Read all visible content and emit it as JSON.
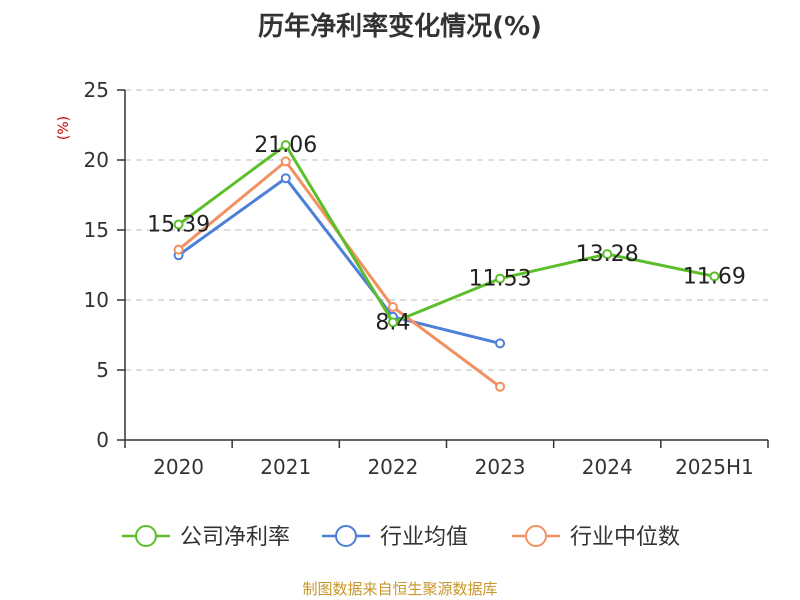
{
  "title": "历年净利率变化情况(%)",
  "source": "制图数据来自恒生聚源数据库",
  "chart_data": {
    "type": "line",
    "title": "历年净利率变化情况(%)",
    "ylabel": "(%)",
    "xlabel": "",
    "categories": [
      "2020",
      "2021",
      "2022",
      "2023",
      "2024",
      "2025H1"
    ],
    "ylim": [
      0,
      25
    ],
    "yticks": [
      0,
      5,
      10,
      15,
      20,
      25
    ],
    "grid": true,
    "legend_position": "bottom",
    "series": [
      {
        "name": "公司净利率",
        "color": "#5cbf2a",
        "values": [
          15.39,
          21.06,
          8.4,
          11.53,
          13.28,
          11.69
        ],
        "labels": [
          "15.39",
          "21.06",
          "8.4",
          "11.53",
          "13.28",
          "11.69"
        ]
      },
      {
        "name": "行业均值",
        "color": "#4d7fd8",
        "values": [
          13.2,
          18.7,
          8.8,
          6.9,
          null,
          null
        ]
      },
      {
        "name": "行业中位数",
        "color": "#f39060",
        "values": [
          13.6,
          19.9,
          9.5,
          3.8,
          null,
          null
        ]
      }
    ]
  }
}
